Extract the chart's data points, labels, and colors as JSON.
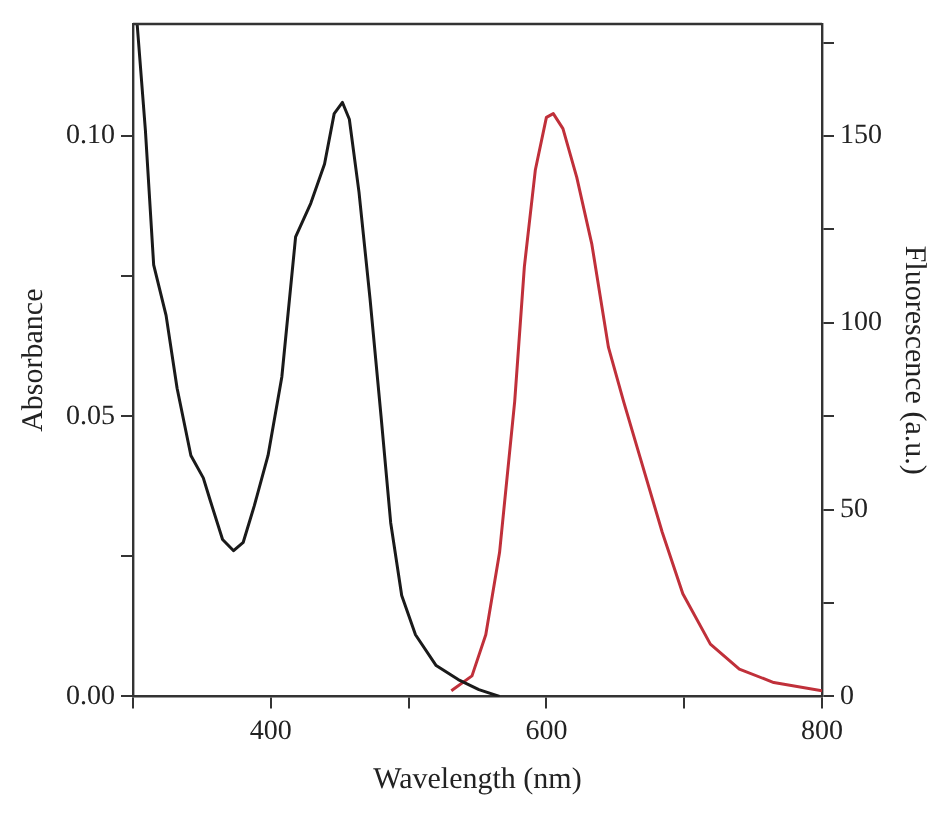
{
  "chart_data": {
    "type": "line",
    "xlabel": "Wavelength (nm)",
    "ylabel": "Absorbance",
    "y2label": "Fluorescence (a.u.)",
    "xlim": [
      300,
      800
    ],
    "xticks": [
      {
        "value": 300,
        "label": null
      },
      400,
      {
        "value": 500,
        "label": null
      },
      600,
      {
        "value": 700,
        "label": null
      },
      800
    ],
    "ylim": [
      0,
      0.12
    ],
    "yticks": [
      {
        "value": 0,
        "label": "0.00"
      },
      {
        "value": 0.025,
        "label": null
      },
      {
        "value": 0.05,
        "label": "0.05"
      },
      {
        "value": 0.075,
        "label": null
      },
      {
        "value": 0.1,
        "label": "0.10"
      }
    ],
    "y2lim": [
      0,
      180
    ],
    "y2ticks": [
      0,
      {
        "value": 25,
        "label": null
      },
      50,
      {
        "value": 75,
        "label": null
      },
      100,
      {
        "value": 125,
        "label": null
      },
      150,
      {
        "value": 175,
        "label": null
      }
    ],
    "grid": false,
    "legend": false,
    "marker": "none",
    "line_style": "solid",
    "series": [
      {
        "color": "#1a1a1a",
        "x": [
          303,
          309,
          315,
          324,
          332,
          342,
          351,
          356,
          365,
          373,
          380,
          388,
          398,
          408,
          418,
          429,
          439,
          446,
          452,
          457,
          464,
          472,
          480,
          487,
          495,
          505,
          520,
          536,
          551,
          566
        ],
        "values": [
          0.12,
          0.101,
          0.077,
          0.068,
          0.055,
          0.043,
          0.039,
          0.035,
          0.028,
          0.026,
          0.0275,
          0.034,
          0.043,
          0.057,
          0.082,
          0.088,
          0.095,
          0.104,
          0.106,
          0.103,
          0.09,
          0.071,
          0.05,
          0.031,
          0.018,
          0.011,
          0.0055,
          0.003,
          0.0012,
          0
        ]
      },
      {
        "color": "#c0303a",
        "axis": "y2",
        "x": [
          531,
          546,
          556,
          566,
          577,
          584,
          592,
          600,
          605,
          612,
          622,
          633,
          645,
          656,
          668,
          684,
          699,
          719,
          740,
          765,
          800
        ],
        "values": [
          1.5,
          5.5,
          16.5,
          38.5,
          79,
          115,
          141,
          155,
          156,
          152,
          139,
          121,
          93.5,
          79,
          64,
          44,
          27.5,
          14,
          7.3,
          3.7,
          1.5
        ]
      }
    ]
  }
}
